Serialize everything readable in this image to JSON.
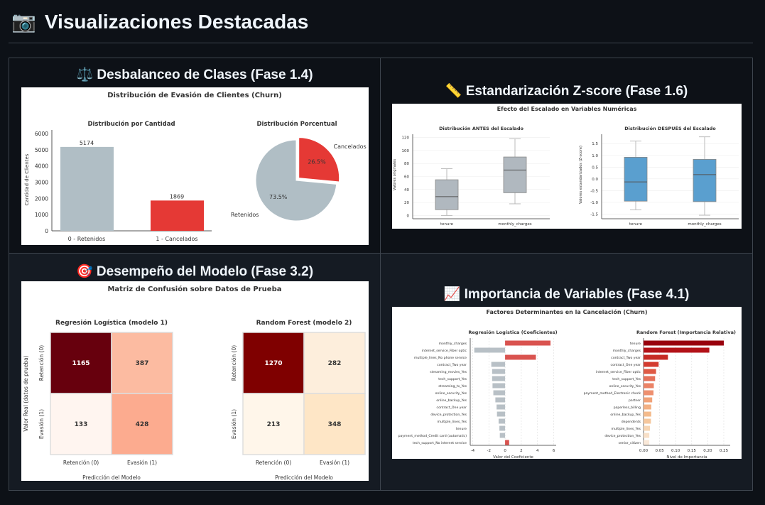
{
  "page": {
    "icon": "camera-icon",
    "title": "Visualizaciones Destacadas"
  },
  "panels": [
    {
      "icon": "balance-scale-icon",
      "emoji": "⚖️",
      "title": "Desbalanceo de Clases (Fase 1.4)"
    },
    {
      "icon": "ruler-icon",
      "emoji": "📏",
      "title": "Estandarización Z-score (Fase 1.6)"
    },
    {
      "icon": "target-icon",
      "emoji": "🎯",
      "title": "Desempeño del Modelo (Fase 3.2)"
    },
    {
      "icon": "chart-increasing-icon",
      "emoji": "📈",
      "title": "Importancia de Variables (Fase 4.1)"
    }
  ],
  "chart_data": [
    {
      "type": "bar",
      "title": "Distribución de Evasión de Clientes (Churn)",
      "subtitle": "Distribución por Cantidad",
      "categories": [
        "0 - Retenidos",
        "1 - Cancelados"
      ],
      "values": [
        5174,
        1869
      ],
      "ylabel": "Cantidad de Clientes",
      "ylim": [
        0,
        6000
      ],
      "yticks": [
        0,
        1000,
        2000,
        3000,
        4000,
        5000,
        6000
      ],
      "colors": [
        "#b0bec5",
        "#e53935"
      ]
    },
    {
      "type": "pie",
      "title": "Distribución Porcentual",
      "labels": [
        "Retenidos",
        "Cancelados"
      ],
      "values": [
        73.5,
        26.5
      ],
      "value_labels": [
        "73.5%",
        "26.5%"
      ],
      "colors": [
        "#b0bec5",
        "#e53935"
      ]
    },
    {
      "type": "box",
      "title": "Efecto del Escalado en Variables Numéricas",
      "subplots": [
        {
          "title": "Distribución ANTES del Escalado",
          "ylabel": "Valores originales",
          "ylim": [
            -5,
            125
          ],
          "yticks": [
            0,
            20,
            40,
            60,
            80,
            100,
            120
          ],
          "color": "#b0b8bf",
          "categories": [
            "tenure",
            "monthly_charges"
          ],
          "boxes": [
            {
              "min": 0,
              "q1": 9,
              "median": 29,
              "q3": 55,
              "max": 72
            },
            {
              "min": 18,
              "q1": 35,
              "median": 70,
              "q3": 90,
              "max": 118
            }
          ]
        },
        {
          "title": "Distribución DESPUÉS del Escalado",
          "ylabel": "Valores estandarizados (Z-score)",
          "ylim": [
            -1.7,
            1.9
          ],
          "yticks": [
            -1.5,
            -1.0,
            -0.5,
            0.0,
            0.5,
            1.0,
            1.5
          ],
          "color": "#5a9fcf",
          "categories": [
            "tenure",
            "monthly_charges"
          ],
          "boxes": [
            {
              "min": -1.32,
              "q1": -0.95,
              "median": -0.13,
              "q3": 0.92,
              "max": 1.61
            },
            {
              "min": -1.55,
              "q1": -0.97,
              "median": 0.18,
              "q3": 0.83,
              "max": 1.79
            }
          ]
        }
      ]
    },
    {
      "type": "heatmap",
      "title": "Matriz de Confusión sobre Datos de Prueba",
      "ylabel": "Valor Real (datos de prueba)",
      "xlabel": "Predicción del Modelo",
      "xticks": [
        "Retención (0)",
        "Evasión (1)"
      ],
      "yticks": [
        "Retención (0)",
        "Evasión (1)"
      ],
      "subplots": [
        {
          "title": "Regresión Logística (modelo 1)",
          "matrix": [
            [
              1165,
              387
            ],
            [
              133,
              428
            ]
          ],
          "colors": [
            [
              "#67000d",
              "#fcbba1"
            ],
            [
              "#fff5f0",
              "#fcab8f"
            ]
          ]
        },
        {
          "title": "Random Forest (modelo 2)",
          "matrix": [
            [
              1270,
              282
            ],
            [
              213,
              348
            ]
          ],
          "colors": [
            [
              "#7f0000",
              "#fdeedc"
            ],
            [
              "#fff6ea",
              "#fee6c6"
            ]
          ]
        }
      ]
    },
    {
      "type": "bar",
      "orientation": "horizontal",
      "title": "Factores Determinantes en la Cancelación (Churn)",
      "subplots": [
        {
          "title": "Regresión Logística (Coeficientes)",
          "xlabel": "Valor del Coeficiente",
          "xlim": [
            -4.3,
            6.3
          ],
          "xticks": [
            -4,
            -2,
            0,
            2,
            4,
            6
          ],
          "categories": [
            "monthly_charges",
            "internet_service_Fiber optic",
            "multiple_lines_No phone service",
            "contract_Two year",
            "streaming_movies_Yes",
            "tech_support_Yes",
            "streaming_tv_Yes",
            "online_security_Yes",
            "online_backup_Yes",
            "contract_One year",
            "device_protection_Yes",
            "multiple_lines_Yes",
            "tenure",
            "payment_method_Credit card (automatic)",
            "tech_support_No internet service"
          ],
          "values": [
            5.6,
            -3.8,
            3.8,
            -1.7,
            -1.6,
            -1.6,
            -1.55,
            -1.45,
            -1.2,
            -1.05,
            -1.0,
            -0.8,
            -0.7,
            -0.65,
            0.5
          ],
          "colors": {
            "positive": "#d9534f",
            "negative": "#b8c0c6"
          }
        },
        {
          "title": "Random Forest (Importancia Relativa)",
          "xlabel": "Nivel de Importancia",
          "xlim": [
            0,
            0.27
          ],
          "xticks": [
            0.0,
            0.05,
            0.1,
            0.15,
            0.2,
            0.25
          ],
          "categories": [
            "tenure",
            "monthly_charges",
            "contract_Two year",
            "contract_One year",
            "internet_service_Fiber optic",
            "tech_support_Yes",
            "online_security_Yes",
            "payment_method_Electronic check",
            "partner",
            "paperless_billing",
            "online_backup_Yes",
            "dependents",
            "multiple_lines_Yes",
            "device_protection_Yes",
            "senior_citizen"
          ],
          "values": [
            0.25,
            0.205,
            0.076,
            0.047,
            0.039,
            0.036,
            0.032,
            0.031,
            0.027,
            0.024,
            0.024,
            0.023,
            0.02,
            0.018,
            0.018
          ]
        }
      ]
    }
  ]
}
